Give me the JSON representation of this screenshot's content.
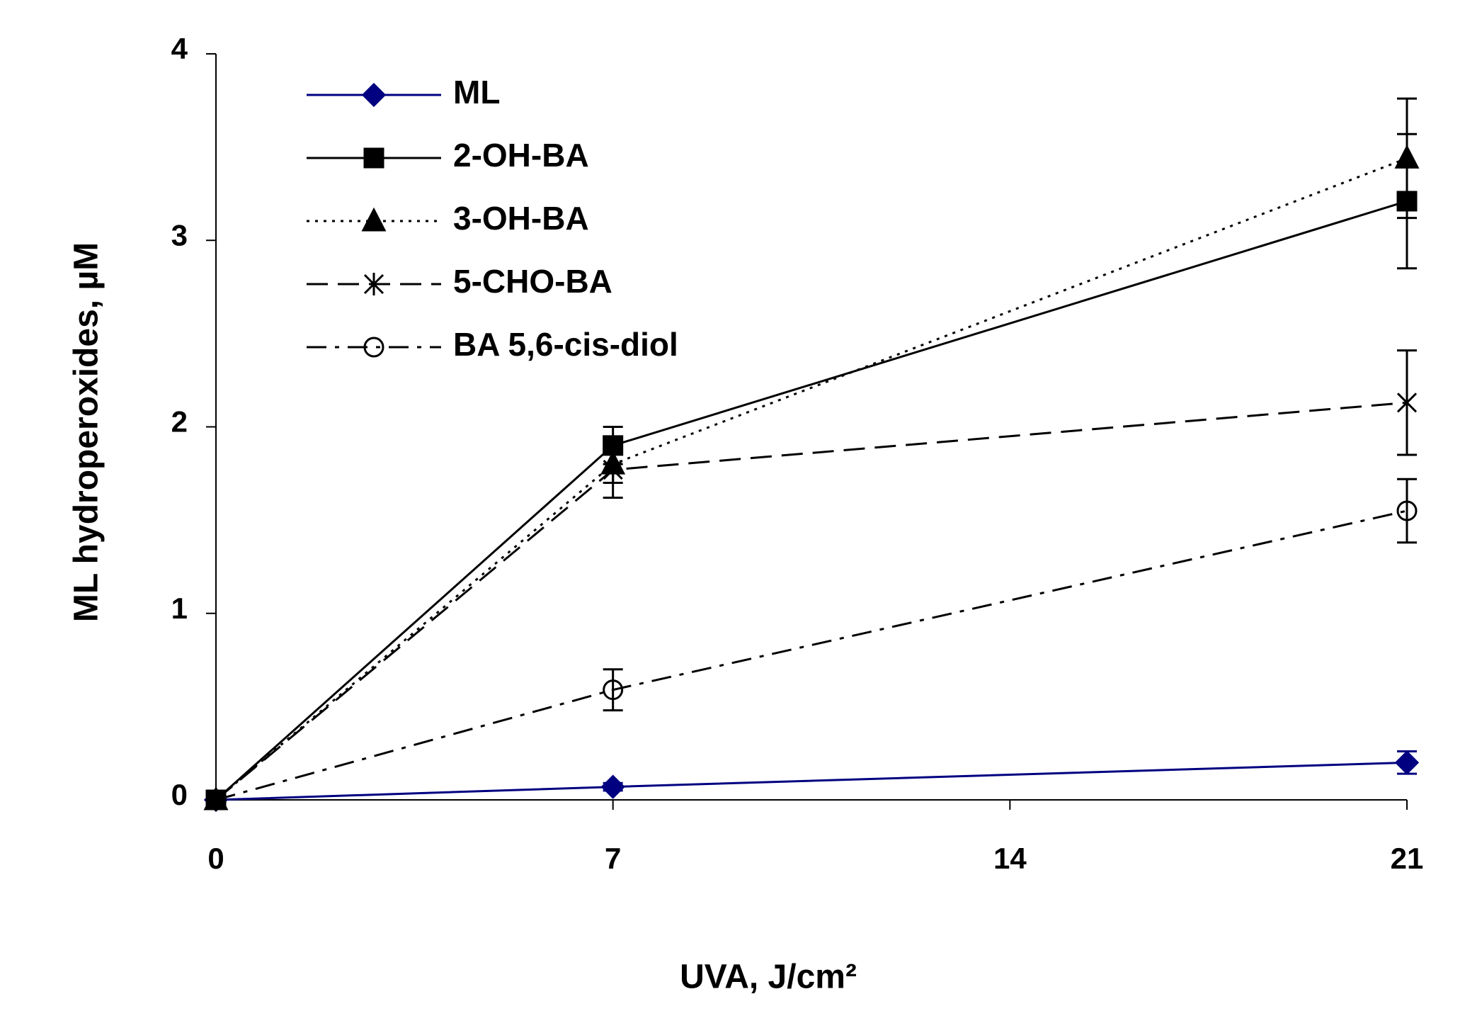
{
  "chart_data": {
    "type": "line",
    "x_label": "UVA, J/cm²",
    "y_label": "ML hydroperoxides, µM",
    "x": [
      0,
      7,
      21
    ],
    "xlim": [
      0,
      21
    ],
    "xticks": [
      0,
      7,
      14,
      21
    ],
    "ylim": [
      0,
      4
    ],
    "yticks": [
      0,
      1,
      2,
      3,
      4
    ],
    "legend": "top-left",
    "series": [
      {
        "name": "ML",
        "color": "#000080",
        "line_style": "solid",
        "marker": "diamond",
        "values": [
          0,
          0.07,
          0.2
        ],
        "errors": [
          0,
          0.02,
          0.06
        ]
      },
      {
        "name": "2-OH-BA",
        "color": "#000000",
        "line_style": "solid",
        "marker": "square",
        "values": [
          0,
          1.9,
          3.21
        ],
        "errors": [
          0,
          0.1,
          0.36
        ]
      },
      {
        "name": "3-OH-BA",
        "color": "#000000",
        "line_style": "dotted",
        "marker": "triangle",
        "values": [
          0,
          1.8,
          3.44
        ],
        "errors": [
          0,
          0.1,
          0.32
        ]
      },
      {
        "name": "5-CHO-BA",
        "color": "#000000",
        "line_style": "dashed",
        "marker": "star",
        "values": [
          0,
          1.77,
          2.13
        ],
        "errors": [
          0,
          0.15,
          0.28
        ]
      },
      {
        "name": "BA 5,6-cis-diol",
        "color": "#000000",
        "line_style": "dashdot",
        "marker": "circle",
        "values": [
          0,
          0.59,
          1.55
        ],
        "errors": [
          0,
          0.11,
          0.17
        ]
      }
    ]
  }
}
